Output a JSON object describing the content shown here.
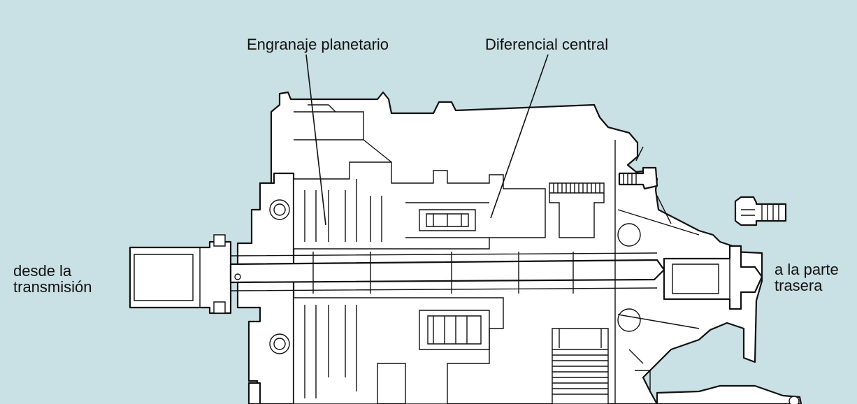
{
  "labels": {
    "planetary_gear": "Engranaje planetario",
    "center_differential": "Diferencial central",
    "from_transmission_line1": "desde la",
    "from_transmission_line2": "transmisión",
    "to_rear_line1": "a la parte",
    "to_rear_line2": "trasera"
  },
  "colors": {
    "background": "#c9e0e4",
    "drawing_fill": "#ffffff",
    "line": "#111111"
  }
}
